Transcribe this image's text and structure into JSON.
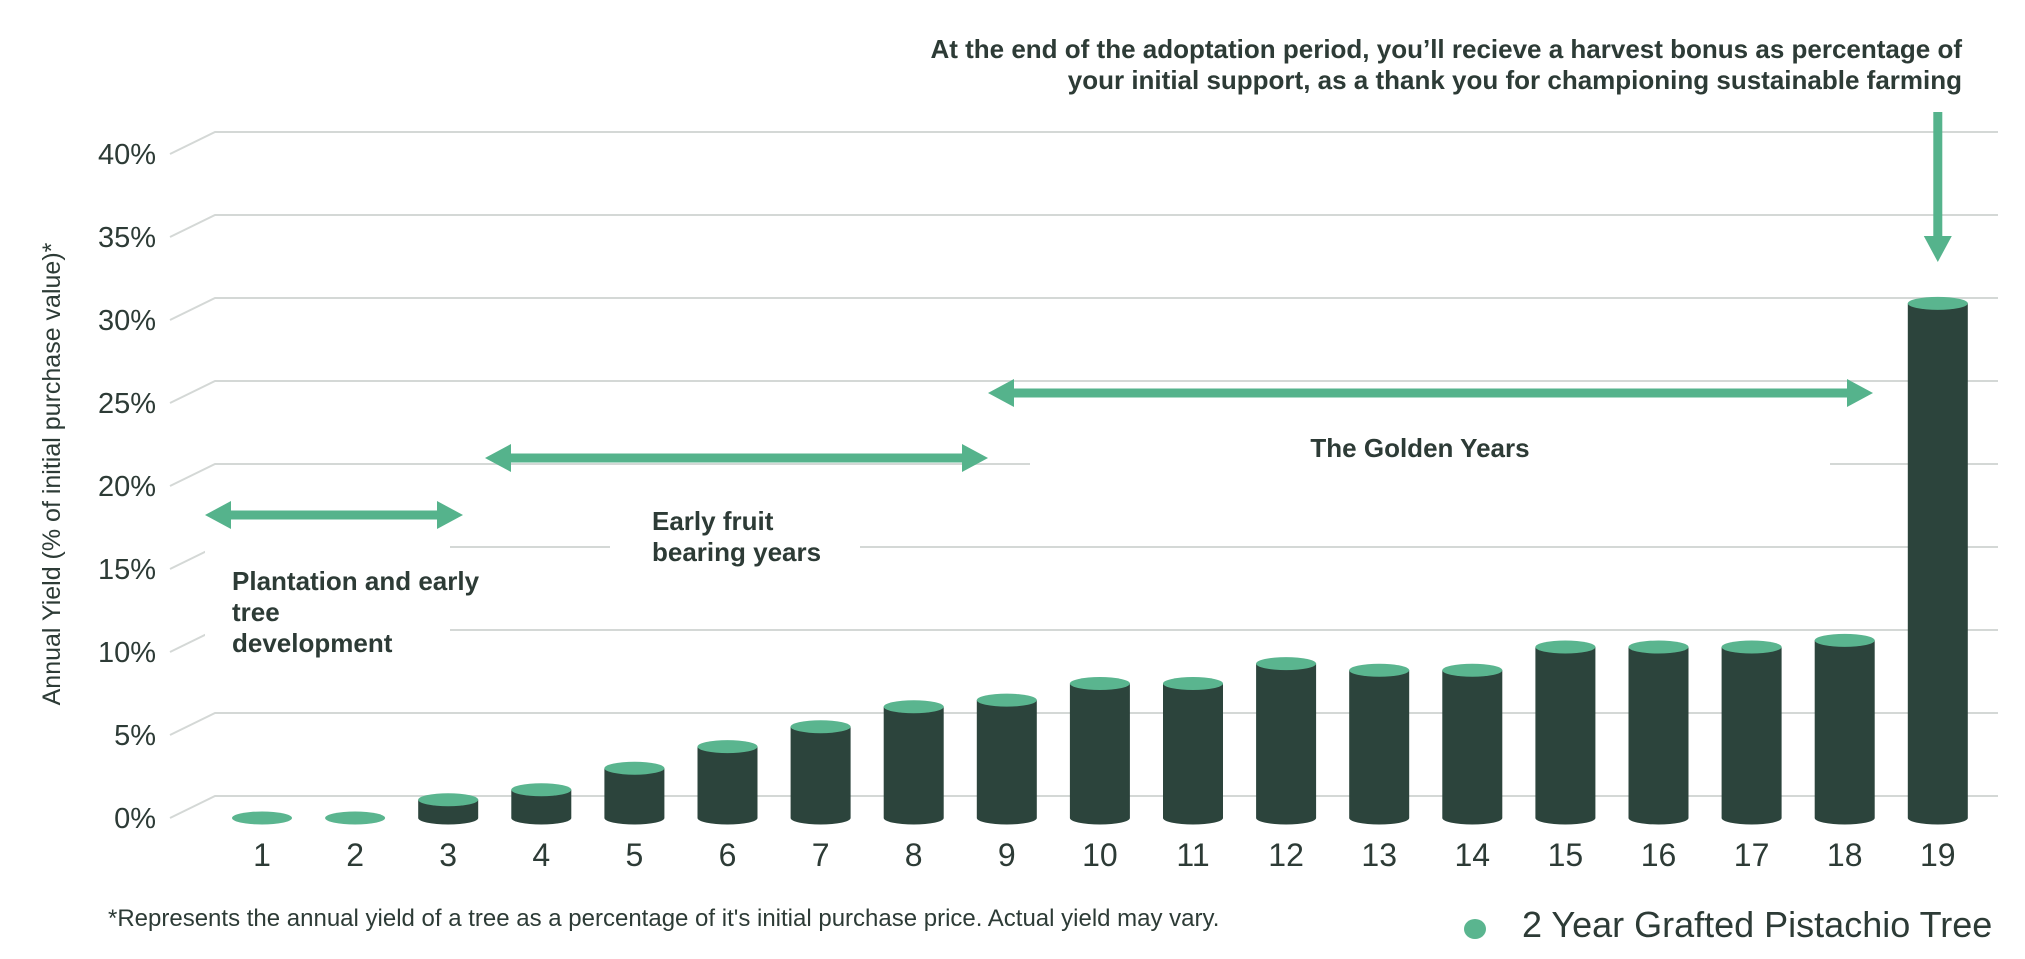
{
  "chart_data": {
    "type": "bar",
    "categories": [
      "1",
      "2",
      "3",
      "4",
      "5",
      "6",
      "7",
      "8",
      "9",
      "10",
      "11",
      "12",
      "13",
      "14",
      "15",
      "16",
      "17",
      "18",
      "19"
    ],
    "series": [
      {
        "name": "2 Year Grafted Pistachio Tree",
        "values": [
          0,
          0,
          1.1,
          1.7,
          3.0,
          4.3,
          5.5,
          6.7,
          7.1,
          8.1,
          8.1,
          9.3,
          8.9,
          8.9,
          10.3,
          10.3,
          10.3,
          10.7,
          31
        ]
      }
    ],
    "ylabel": "Annual Yield (% of initial purchase value)*",
    "ylim": [
      0,
      40
    ],
    "yticks": [
      {
        "value": 0,
        "label": "0%"
      },
      {
        "value": 5,
        "label": "5%"
      },
      {
        "value": 10,
        "label": "10%"
      },
      {
        "value": 15,
        "label": "15%"
      },
      {
        "value": 20,
        "label": "20%"
      },
      {
        "value": 25,
        "label": "25%"
      },
      {
        "value": 30,
        "label": "30%"
      },
      {
        "value": 35,
        "label": "35%"
      },
      {
        "value": 40,
        "label": "40%"
      }
    ],
    "grid": true,
    "legend": {
      "placement": "bottom-right",
      "label": "2 Year Grafted Pistachio Tree"
    },
    "phases": [
      {
        "lines": [
          "Plantation and early",
          "tree",
          "development"
        ],
        "from": "1",
        "to": "3"
      },
      {
        "lines": [
          "Early fruit",
          "bearing years"
        ],
        "from": "3",
        "to": "9"
      },
      {
        "lines": [
          "The Golden Years"
        ],
        "from": "9",
        "to": "18"
      }
    ],
    "callout": {
      "lines": [
        "At the end of the adoptation period, you’ll recieve a harvest bonus as percentage of",
        "your initial support, as a thank you for championing sustainable farming"
      ],
      "points_to": "19"
    },
    "footnote": "*Represents the annual yield of a tree as a percentage of it's initial purchase price. Actual yield may vary.",
    "colors": {
      "bar": "#2c443c",
      "bar_top": "#5ab58f",
      "accent": "#55b38c",
      "grid": "#d4d8d6",
      "text": "#2d3b36"
    }
  }
}
